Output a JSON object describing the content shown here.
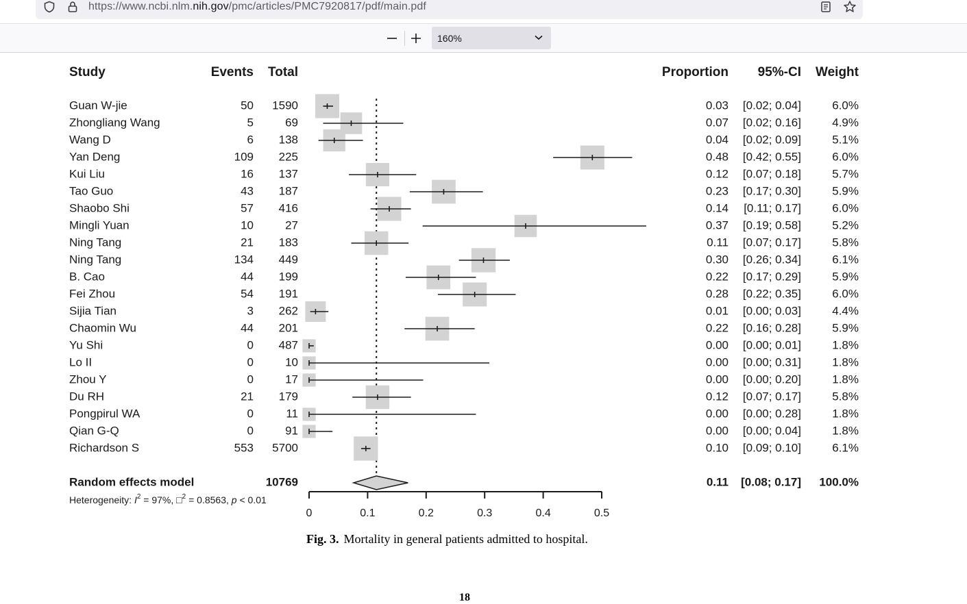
{
  "browser": {
    "url_prefix": "https://www.ncbi.nlm.",
    "url_domain": "nih.gov",
    "url_suffix": "/pmc/articles/PMC7920817/pdf/main.pdf",
    "icons": [
      "shield-icon",
      "lock-icon",
      "reader-view-icon",
      "bookmark-star-icon"
    ]
  },
  "pdf_toolbar": {
    "zoom_out_label": "—",
    "zoom_in_label": "+",
    "zoom_value": "160%"
  },
  "chart_data": {
    "type": "forest",
    "headers": {
      "study": "Study",
      "events": "Events",
      "total": "Total",
      "proportion": "Proportion",
      "ci": "95%-CI",
      "weight": "Weight"
    },
    "studies": [
      {
        "name": "Guan W-jie",
        "events": "50",
        "total": "1590",
        "prop_text": "0.03",
        "ci_text": "[0.02; 0.04]",
        "weight_text": "6.0%",
        "est": 0.031,
        "lo": 0.024,
        "hi": 0.041,
        "weight": 6.0
      },
      {
        "name": "Zhongliang Wang",
        "events": "5",
        "total": "69",
        "prop_text": "0.07",
        "ci_text": "[0.02; 0.16]",
        "weight_text": "4.9%",
        "est": 0.072,
        "lo": 0.024,
        "hi": 0.161,
        "weight": 4.9
      },
      {
        "name": "Wang D",
        "events": "6",
        "total": "138",
        "prop_text": "0.04",
        "ci_text": "[0.02; 0.09]",
        "weight_text": "5.1%",
        "est": 0.043,
        "lo": 0.016,
        "hi": 0.092,
        "weight": 5.1
      },
      {
        "name": "Yan Deng",
        "events": "109",
        "total": "225",
        "prop_text": "0.48",
        "ci_text": "[0.42; 0.55]",
        "weight_text": "6.0%",
        "est": 0.484,
        "lo": 0.417,
        "hi": 0.552,
        "weight": 6.0
      },
      {
        "name": "Kui Liu",
        "events": "16",
        "total": "137",
        "prop_text": "0.12",
        "ci_text": "[0.07; 0.18]",
        "weight_text": "5.7%",
        "est": 0.117,
        "lo": 0.068,
        "hi": 0.183,
        "weight": 5.7
      },
      {
        "name": "Tao Guo",
        "events": "43",
        "total": "187",
        "prop_text": "0.23",
        "ci_text": "[0.17; 0.30]",
        "weight_text": "5.9%",
        "est": 0.23,
        "lo": 0.172,
        "hi": 0.297,
        "weight": 5.9
      },
      {
        "name": "Shaobo Shi",
        "events": "57",
        "total": "416",
        "prop_text": "0.14",
        "ci_text": "[0.11; 0.17]",
        "weight_text": "6.0%",
        "est": 0.137,
        "lo": 0.105,
        "hi": 0.174,
        "weight": 6.0
      },
      {
        "name": "Mingli Yuan",
        "events": "10",
        "total": "27",
        "prop_text": "0.37",
        "ci_text": "[0.19; 0.58]",
        "weight_text": "5.2%",
        "est": 0.37,
        "lo": 0.194,
        "hi": 0.576,
        "weight": 5.2
      },
      {
        "name": "Ning Tang",
        "events": "21",
        "total": "183",
        "prop_text": "0.11",
        "ci_text": "[0.07; 0.17]",
        "weight_text": "5.8%",
        "est": 0.115,
        "lo": 0.072,
        "hi": 0.17,
        "weight": 5.8
      },
      {
        "name": "Ning Tang",
        "events": "134",
        "total": "449",
        "prop_text": "0.30",
        "ci_text": "[0.26; 0.34]",
        "weight_text": "6.1%",
        "est": 0.298,
        "lo": 0.256,
        "hi": 0.343,
        "weight": 6.1
      },
      {
        "name": "B. Cao",
        "events": "44",
        "total": "199",
        "prop_text": "0.22",
        "ci_text": "[0.17; 0.29]",
        "weight_text": "5.9%",
        "est": 0.221,
        "lo": 0.165,
        "hi": 0.285,
        "weight": 5.9
      },
      {
        "name": "Fei Zhou",
        "events": "54",
        "total": "191",
        "prop_text": "0.28",
        "ci_text": "[0.22; 0.35]",
        "weight_text": "6.0%",
        "est": 0.283,
        "lo": 0.22,
        "hi": 0.353,
        "weight": 6.0
      },
      {
        "name": "Sijia Tian",
        "events": "3",
        "total": "262",
        "prop_text": "0.01",
        "ci_text": "[0.00; 0.03]",
        "weight_text": "4.4%",
        "est": 0.011,
        "lo": 0.002,
        "hi": 0.033,
        "weight": 4.4
      },
      {
        "name": "Chaomin Wu",
        "events": "44",
        "total": "201",
        "prop_text": "0.22",
        "ci_text": "[0.16; 0.28]",
        "weight_text": "5.9%",
        "est": 0.219,
        "lo": 0.163,
        "hi": 0.283,
        "weight": 5.9
      },
      {
        "name": "Yu Shi",
        "events": "0",
        "total": "487",
        "prop_text": "0.00",
        "ci_text": "[0.00; 0.01]",
        "weight_text": "1.8%",
        "est": 0.0,
        "lo": 0.0,
        "hi": 0.008,
        "weight": 1.8
      },
      {
        "name": "Lo II",
        "events": "0",
        "total": "10",
        "prop_text": "0.00",
        "ci_text": "[0.00; 0.31]",
        "weight_text": "1.8%",
        "est": 0.0,
        "lo": 0.0,
        "hi": 0.308,
        "weight": 1.8
      },
      {
        "name": "Zhou Y",
        "events": "0",
        "total": "17",
        "prop_text": "0.00",
        "ci_text": "[0.00; 0.20]",
        "weight_text": "1.8%",
        "est": 0.0,
        "lo": 0.0,
        "hi": 0.195,
        "weight": 1.8
      },
      {
        "name": "Du RH",
        "events": "21",
        "total": "179",
        "prop_text": "0.12",
        "ci_text": "[0.07; 0.17]",
        "weight_text": "5.8%",
        "est": 0.117,
        "lo": 0.074,
        "hi": 0.174,
        "weight": 5.8
      },
      {
        "name": "Pongpirul WA",
        "events": "0",
        "total": "11",
        "prop_text": "0.00",
        "ci_text": "[0.00; 0.28]",
        "weight_text": "1.8%",
        "est": 0.0,
        "lo": 0.0,
        "hi": 0.285,
        "weight": 1.8
      },
      {
        "name": "Qian G-Q",
        "events": "0",
        "total": "91",
        "prop_text": "0.00",
        "ci_text": "[0.00; 0.04]",
        "weight_text": "1.8%",
        "est": 0.0,
        "lo": 0.0,
        "hi": 0.04,
        "weight": 1.8
      },
      {
        "name": "Richardson S",
        "events": "553",
        "total": "5700",
        "prop_text": "0.10",
        "ci_text": "[0.09; 0.10]",
        "weight_text": "6.1%",
        "est": 0.097,
        "lo": 0.089,
        "hi": 0.105,
        "weight": 6.1
      }
    ],
    "pooled": {
      "label": "Random effects model",
      "total": "10769",
      "prop_text": "0.11",
      "ci_text": "[0.08; 0.17]",
      "weight_text": "100.0%",
      "est": 0.115,
      "lo": 0.076,
      "hi": 0.169
    },
    "heterogeneity": {
      "prefix": "Heterogeneity: ",
      "i2_symbol": "I",
      "i2_value": " = 97%, ",
      "tau2_symbol": "□",
      "tau2_value": " = 0.8563, ",
      "p_symbol": "p",
      "p_value": " < 0.01",
      "sup": "2"
    },
    "xaxis": {
      "ticks": [
        0,
        0.1,
        0.2,
        0.3,
        0.4,
        0.5
      ],
      "tick_labels": [
        "0",
        "0.1",
        "0.2",
        "0.3",
        "0.4",
        "0.5"
      ],
      "range": [
        0,
        0.5
      ]
    },
    "reference_line": 0.115,
    "colors": {
      "square": "#d3d3d3",
      "diamond": "#d3d3d3",
      "line": "#1a1a1a"
    }
  },
  "caption": {
    "label": "Fig. 3.",
    "text": "Mortality in general patients admitted to hospital."
  },
  "page_number": "18"
}
